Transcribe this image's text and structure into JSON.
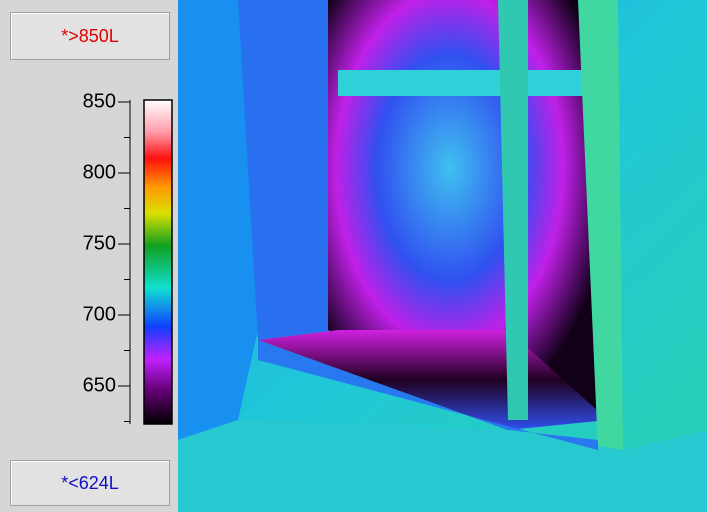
{
  "header_label": "*>850L",
  "footer_label": "*<624L",
  "scale": {
    "ticks": [
      850,
      800,
      750,
      700,
      650
    ]
  }
}
